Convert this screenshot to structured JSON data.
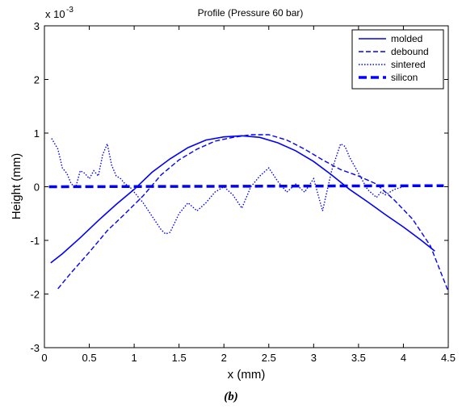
{
  "chart_data": {
    "type": "line",
    "title": "Profile (Pressure 60 bar)",
    "xlabel": "x (mm)",
    "ylabel": "Height (mm)",
    "y_multiplier_label": "x 10",
    "y_multiplier_exponent": "-3",
    "xlim": [
      0,
      4.5
    ],
    "ylim": [
      -3,
      3
    ],
    "x_ticks": [
      "0",
      "0.5",
      "1",
      "1.5",
      "2",
      "2.5",
      "3",
      "3.5",
      "4",
      "4.5"
    ],
    "y_ticks": [
      "-3",
      "-2",
      "-1",
      "0",
      "1",
      "2",
      "3"
    ],
    "grid": false,
    "legend_position": "top-right",
    "line_color": "#0000ff",
    "series": [
      {
        "name": "molded",
        "style": "solid",
        "x": [
          0.07,
          0.2,
          0.4,
          0.6,
          0.8,
          1.0,
          1.2,
          1.4,
          1.6,
          1.8,
          2.0,
          2.2,
          2.4,
          2.6,
          2.8,
          3.0,
          3.2,
          3.4,
          3.6,
          3.8,
          4.0,
          4.2,
          4.35
        ],
        "y": [
          -1.42,
          -1.25,
          -0.95,
          -0.63,
          -0.33,
          -0.05,
          0.27,
          0.52,
          0.73,
          0.87,
          0.93,
          0.95,
          0.92,
          0.82,
          0.67,
          0.47,
          0.22,
          -0.05,
          -0.28,
          -0.52,
          -0.75,
          -1.0,
          -1.2
        ]
      },
      {
        "name": "debound",
        "style": "dashed",
        "x": [
          0.15,
          0.3,
          0.5,
          0.7,
          0.9,
          1.1,
          1.3,
          1.5,
          1.7,
          1.9,
          2.1,
          2.3,
          2.5,
          2.7,
          2.9,
          3.1,
          3.3,
          3.5,
          3.7,
          3.9,
          4.1,
          4.3,
          4.5
        ],
        "y": [
          -1.9,
          -1.6,
          -1.22,
          -0.82,
          -0.5,
          -0.17,
          0.22,
          0.5,
          0.7,
          0.85,
          0.92,
          0.97,
          0.97,
          0.87,
          0.7,
          0.5,
          0.32,
          0.2,
          0.05,
          -0.25,
          -0.6,
          -1.1,
          -1.95
        ]
      },
      {
        "name": "sintered",
        "style": "dotted",
        "x": [
          0.08,
          0.15,
          0.2,
          0.25,
          0.3,
          0.35,
          0.4,
          0.45,
          0.5,
          0.55,
          0.6,
          0.65,
          0.7,
          0.75,
          0.8,
          0.85,
          0.9,
          0.95,
          1.0,
          1.1,
          1.2,
          1.3,
          1.35,
          1.4,
          1.5,
          1.6,
          1.7,
          1.8,
          1.9,
          2.0,
          2.1,
          2.2,
          2.3,
          2.4,
          2.5,
          2.6,
          2.7,
          2.8,
          2.9,
          3.0,
          3.1,
          3.2,
          3.25,
          3.3,
          3.35,
          3.4,
          3.5,
          3.6,
          3.7,
          3.75,
          3.8,
          3.9,
          4.0
        ],
        "y": [
          0.9,
          0.7,
          0.35,
          0.25,
          0.05,
          0.0,
          0.3,
          0.25,
          0.15,
          0.3,
          0.2,
          0.6,
          0.8,
          0.4,
          0.2,
          0.15,
          0.05,
          0.0,
          -0.1,
          -0.3,
          -0.55,
          -0.8,
          -0.88,
          -0.85,
          -0.5,
          -0.3,
          -0.45,
          -0.3,
          -0.1,
          0.0,
          -0.15,
          -0.4,
          0.0,
          0.2,
          0.35,
          0.1,
          -0.1,
          0.05,
          -0.1,
          0.15,
          -0.45,
          0.3,
          0.55,
          0.8,
          0.75,
          0.55,
          0.25,
          -0.05,
          -0.2,
          -0.1,
          -0.15,
          -0.05,
          0.0
        ]
      },
      {
        "name": "silicon",
        "style": "thick-dashed",
        "x": [
          0.05,
          4.45
        ],
        "y": [
          0.0,
          0.02
        ]
      }
    ]
  },
  "caption": "(b)"
}
